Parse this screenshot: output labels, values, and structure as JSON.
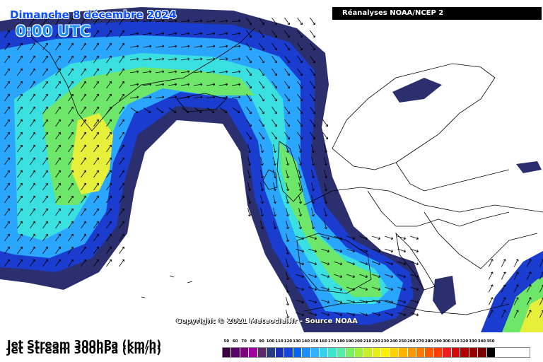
{
  "header": {
    "date": "Dimanche 8 décembre 2024",
    "time": "0:00 UTC",
    "source": "Réanalyses NOAA/NCEP 2"
  },
  "copyright": "Copyright © 2021 Meteociel.fr - Source NOAA",
  "parameter": "Jet Stream 300hPa (km/h)",
  "legend": {
    "values": [
      "50",
      "60",
      "70",
      "80",
      "90",
      "100",
      "110",
      "120",
      "130",
      "140",
      "150",
      "160",
      "170",
      "180",
      "190",
      "200",
      "210",
      "220",
      "230",
      "240",
      "250",
      "260",
      "270",
      "280",
      "290",
      "300",
      "310",
      "320",
      "330",
      "340",
      "350"
    ],
    "colors": [
      "#3a0040",
      "#5c006b",
      "#7a007a",
      "#a000a0",
      "#5a2a6a",
      "#283c82",
      "#1a2eb4",
      "#1446dc",
      "#0a64f0",
      "#1a90ff",
      "#2ab4ff",
      "#32d2f0",
      "#3ce6c8",
      "#50f0a0",
      "#78f064",
      "#a0f03c",
      "#c8f028",
      "#e6f014",
      "#fff000",
      "#ffd200",
      "#ffb400",
      "#ff9600",
      "#ff7800",
      "#ff5a00",
      "#ff3c00",
      "#f01e1e",
      "#d20a0a",
      "#b40000",
      "#960000",
      "#780000",
      "#000000"
    ]
  },
  "colors": {
    "outer_band": "#2b2f6e",
    "band_blue": "#1a3ccf",
    "band_light": "#2aa6ff",
    "band_cyan": "#3ae0e0",
    "band_green": "#6ee66a",
    "band_yellow": "#e6f03a",
    "arrow": "#000000"
  }
}
